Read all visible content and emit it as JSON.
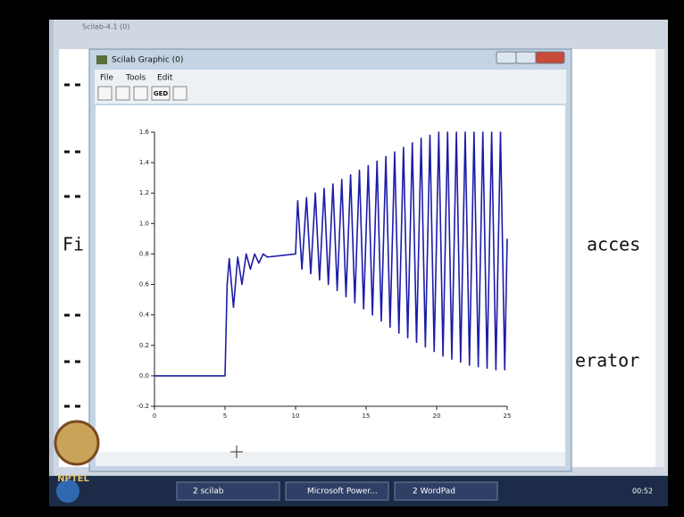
{
  "console": {
    "title": "Scilab-4.1 (0)",
    "fragments": [
      "Fi",
      "acces",
      "erator"
    ]
  },
  "window": {
    "title": "Scilab Graphic (0)",
    "menu": [
      "File",
      "Tools",
      "Edit"
    ],
    "toolbar_button": "GED"
  },
  "taskbar": {
    "items": [
      "2 scilab",
      "Microsoft Power...",
      "2 WordPad"
    ],
    "clock": "00:52"
  },
  "logo": "NPTEL",
  "chart_data": {
    "type": "line",
    "xlim": [
      0,
      25
    ],
    "ylim": [
      -0.2,
      1.6
    ],
    "xticks": [
      0,
      5,
      10,
      15,
      20,
      25
    ],
    "yticks": [
      -0.2,
      {
        "value": 0,
        "label": "0.0"
      },
      0.2,
      0.4,
      0.6,
      0.8,
      {
        "value": 1,
        "label": "1.0"
      },
      1.2,
      1.4,
      1.6
    ],
    "x": [
      0,
      5,
      5.15,
      5.3,
      5.6,
      5.9,
      6.2,
      6.5,
      6.8,
      7.1,
      7.4,
      7.7,
      8,
      10,
      10.15,
      10.45,
      10.775,
      11.075,
      11.4,
      11.7,
      12.025,
      12.325,
      12.65,
      12.95,
      13.275,
      13.575,
      13.9,
      14.2,
      14.525,
      14.825,
      15.15,
      15.45,
      15.775,
      16.075,
      16.4,
      16.7,
      17.025,
      17.325,
      17.65,
      17.95,
      18.275,
      18.575,
      18.9,
      19.2,
      19.525,
      19.825,
      20.15,
      20.45,
      20.775,
      21.075,
      21.4,
      21.7,
      22.025,
      22.325,
      22.65,
      22.95,
      23.275,
      23.575,
      23.9,
      24.2,
      24.525,
      24.825,
      25
    ],
    "series": [
      {
        "color": "#1c1ca8",
        "values": [
          0,
          0,
          0.6,
          0.77,
          0.45,
          0.78,
          0.6,
          0.8,
          0.7,
          0.8,
          0.74,
          0.8,
          0.78,
          0.8,
          1.15,
          0.7,
          1.17,
          0.67,
          1.2,
          0.63,
          1.23,
          0.6,
          1.26,
          0.56,
          1.29,
          0.52,
          1.32,
          0.48,
          1.35,
          0.44,
          1.38,
          0.4,
          1.41,
          0.36,
          1.44,
          0.32,
          1.47,
          0.28,
          1.5,
          0.25,
          1.53,
          0.22,
          1.56,
          0.19,
          1.58,
          0.16,
          1.6,
          0.13,
          1.6,
          0.11,
          1.6,
          0.09,
          1.6,
          0.07,
          1.6,
          0.06,
          1.6,
          0.05,
          1.6,
          0.04,
          1.6,
          0.04,
          0.9
        ]
      }
    ]
  }
}
